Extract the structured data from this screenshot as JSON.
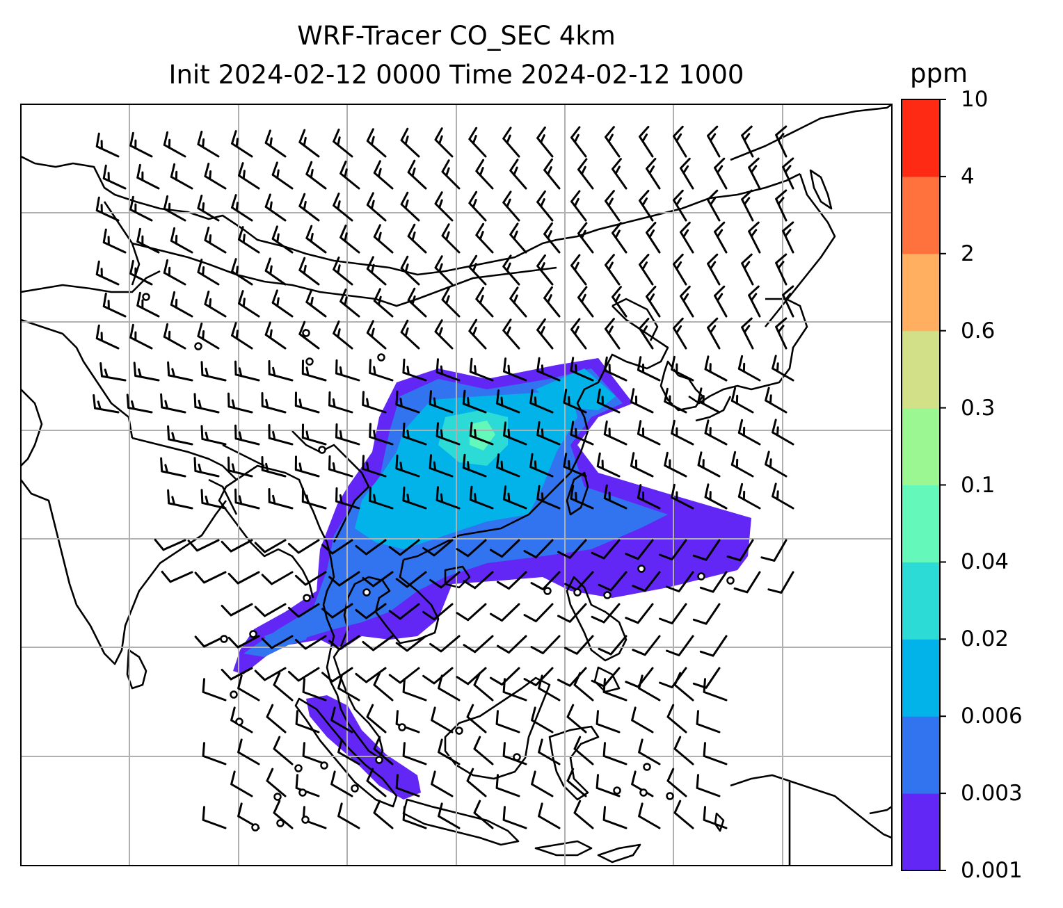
{
  "title": {
    "line1": "WRF-Tracer CO_SEC 4km",
    "line2": "Init 2024-02-12 0000 Time 2024-02-12 1000"
  },
  "colorbar": {
    "unit": "ppm",
    "ticks": [
      "0.001",
      "0.003",
      "0.006",
      "0.02",
      "0.04",
      "0.1",
      "0.3",
      "0.6",
      "2",
      "4",
      "10"
    ],
    "colors": [
      "#6227f5",
      "#3274f0",
      "#02b3ea",
      "#2ddbd6",
      "#64f8bb",
      "#9af791",
      "#d2e087",
      "#ffaf5f",
      "#ff723e",
      "#ff2a14"
    ]
  },
  "map": {
    "projection": "lat-lon",
    "gridlines": true,
    "overlays": [
      "coastlines",
      "country borders",
      "wind barbs"
    ],
    "calm_marker": "circle"
  }
}
